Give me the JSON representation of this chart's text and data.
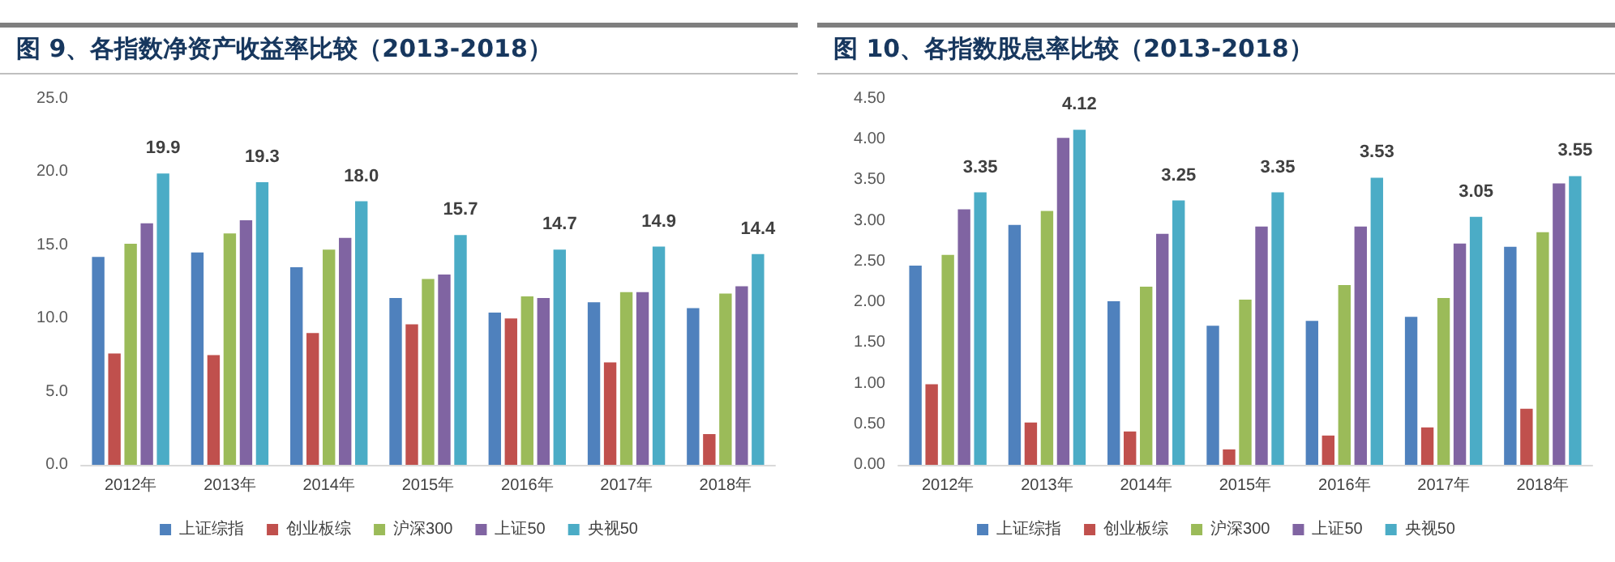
{
  "chart_data": [
    {
      "type": "bar",
      "title": "图 9、各指数净资产收益率比较（2013-2018）",
      "categories": [
        "2012年",
        "2013年",
        "2014年",
        "2015年",
        "2016年",
        "2017年",
        "2018年"
      ],
      "series": [
        {
          "name": "上证综指",
          "color": "#4f81bd",
          "values": [
            14.2,
            14.5,
            13.5,
            11.4,
            10.4,
            11.1,
            10.7
          ]
        },
        {
          "name": "创业板综",
          "color": "#c0504d",
          "values": [
            7.6,
            7.5,
            9.0,
            9.6,
            10.0,
            7.0,
            2.1
          ]
        },
        {
          "name": "沪深300",
          "color": "#9bbb59",
          "values": [
            15.1,
            15.8,
            14.7,
            12.7,
            11.5,
            11.8,
            11.7
          ]
        },
        {
          "name": "上证50",
          "color": "#8064a2",
          "values": [
            16.5,
            16.7,
            15.5,
            13.0,
            11.4,
            11.8,
            12.2
          ]
        },
        {
          "name": "央视50",
          "color": "#4bacc6",
          "values": [
            19.9,
            19.3,
            18.0,
            15.7,
            14.7,
            14.9,
            14.4
          ],
          "value_labels": [
            "19.9",
            "19.3",
            "18.0",
            "15.7",
            "14.7",
            "14.9",
            "14.4"
          ]
        }
      ],
      "ylim": [
        0,
        25
      ],
      "yticks": [
        {
          "value": 0,
          "label": "0.0"
        },
        {
          "value": 5,
          "label": "5.0"
        },
        {
          "value": 10,
          "label": "10.0"
        },
        {
          "value": 15,
          "label": "15.0"
        },
        {
          "value": 20,
          "label": "20.0"
        },
        {
          "value": 25,
          "label": "25.0"
        }
      ],
      "grid": false,
      "legend": "bottom"
    },
    {
      "type": "bar",
      "title": "图 10、各指数股息率比较（2013-2018）",
      "categories": [
        "2012年",
        "2013年",
        "2014年",
        "2015年",
        "2016年",
        "2017年",
        "2018年"
      ],
      "series": [
        {
          "name": "上证综指",
          "color": "#4f81bd",
          "values": [
            2.45,
            2.95,
            2.01,
            1.71,
            1.77,
            1.82,
            2.68
          ]
        },
        {
          "name": "创业板综",
          "color": "#c0504d",
          "values": [
            0.99,
            0.52,
            0.41,
            0.19,
            0.36,
            0.46,
            0.69
          ]
        },
        {
          "name": "沪深300",
          "color": "#9bbb59",
          "values": [
            2.58,
            3.12,
            2.19,
            2.03,
            2.21,
            2.05,
            2.86
          ]
        },
        {
          "name": "上证50",
          "color": "#8064a2",
          "values": [
            3.14,
            4.02,
            2.84,
            2.93,
            2.93,
            2.72,
            3.46
          ]
        },
        {
          "name": "央视50",
          "color": "#4bacc6",
          "values": [
            3.35,
            4.12,
            3.25,
            3.35,
            3.53,
            3.05,
            3.55
          ],
          "value_labels": [
            "3.35",
            "4.12",
            "3.25",
            "3.35",
            "3.53",
            "3.05",
            "3.55"
          ]
        }
      ],
      "ylim": [
        0,
        4.5
      ],
      "yticks": [
        {
          "value": 0,
          "label": "0.00"
        },
        {
          "value": 0.5,
          "label": "0.50"
        },
        {
          "value": 1,
          "label": "1.00"
        },
        {
          "value": 1.5,
          "label": "1.50"
        },
        {
          "value": 2,
          "label": "2.00"
        },
        {
          "value": 2.5,
          "label": "2.50"
        },
        {
          "value": 3,
          "label": "3.00"
        },
        {
          "value": 3.5,
          "label": "3.50"
        },
        {
          "value": 4,
          "label": "4.00"
        },
        {
          "value": 4.5,
          "label": "4.50"
        }
      ],
      "grid": false,
      "legend": "bottom"
    }
  ]
}
